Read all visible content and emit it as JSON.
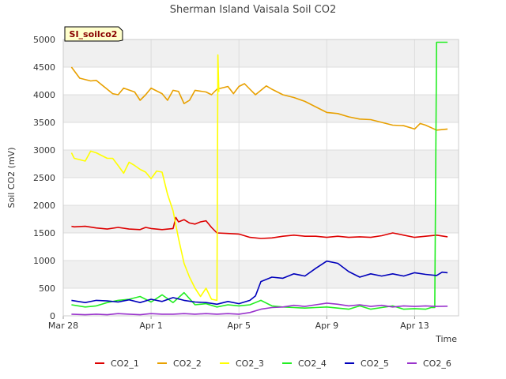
{
  "chart_data": {
    "type": "line",
    "title": "Sherman Island Vaisala Soil CO2",
    "xlabel": "Time",
    "ylabel": "Soil CO2 (mV)",
    "site_label": "SI_soilco2",
    "ylim": [
      0,
      5000
    ],
    "yticks": [
      0,
      500,
      1000,
      1500,
      2000,
      2500,
      3000,
      3500,
      4000,
      4500,
      5000
    ],
    "xlim": [
      "2023-03-28",
      "2023-04-15"
    ],
    "xticks": [
      {
        "date": "2023-03-28",
        "label": "Mar 28"
      },
      {
        "date": "2023-04-01",
        "label": "Apr 1"
      },
      {
        "date": "2023-04-05",
        "label": "Apr 5"
      },
      {
        "date": "2023-04-09",
        "label": "Apr 9"
      },
      {
        "date": "2023-04-13",
        "label": "Apr 13"
      }
    ],
    "legend_position": "bottom",
    "background_bands": true,
    "series": [
      {
        "name": "CO2_1",
        "color": "#dd0000",
        "points": [
          [
            "2023-03-28T09:00",
            1620
          ],
          [
            "2023-03-28T12:00",
            1610
          ],
          [
            "2023-03-29T00:00",
            1620
          ],
          [
            "2023-03-29T12:00",
            1590
          ],
          [
            "2023-03-30T00:00",
            1570
          ],
          [
            "2023-03-30T12:00",
            1600
          ],
          [
            "2023-03-31T00:00",
            1570
          ],
          [
            "2023-03-31T12:00",
            1560
          ],
          [
            "2023-03-31T18:00",
            1600
          ],
          [
            "2023-04-01T00:00",
            1580
          ],
          [
            "2023-04-01T12:00",
            1560
          ],
          [
            "2023-04-02T00:00",
            1580
          ],
          [
            "2023-04-02T03:00",
            1780
          ],
          [
            "2023-04-02T06:00",
            1700
          ],
          [
            "2023-04-02T12:00",
            1740
          ],
          [
            "2023-04-02T18:00",
            1680
          ],
          [
            "2023-04-03T00:00",
            1660
          ],
          [
            "2023-04-03T06:00",
            1700
          ],
          [
            "2023-04-03T12:00",
            1720
          ],
          [
            "2023-04-03T18:00",
            1600
          ],
          [
            "2023-04-04T00:00",
            1500
          ],
          [
            "2023-04-04T12:00",
            1490
          ],
          [
            "2023-04-05T00:00",
            1480
          ],
          [
            "2023-04-05T12:00",
            1420
          ],
          [
            "2023-04-06T00:00",
            1400
          ],
          [
            "2023-04-06T12:00",
            1410
          ],
          [
            "2023-04-07T00:00",
            1440
          ],
          [
            "2023-04-07T12:00",
            1460
          ],
          [
            "2023-04-08T00:00",
            1440
          ],
          [
            "2023-04-08T12:00",
            1440
          ],
          [
            "2023-04-09T00:00",
            1420
          ],
          [
            "2023-04-09T12:00",
            1440
          ],
          [
            "2023-04-10T00:00",
            1420
          ],
          [
            "2023-04-10T12:00",
            1430
          ],
          [
            "2023-04-11T00:00",
            1420
          ],
          [
            "2023-04-11T12:00",
            1450
          ],
          [
            "2023-04-12T00:00",
            1500
          ],
          [
            "2023-04-12T12:00",
            1460
          ],
          [
            "2023-04-13T00:00",
            1420
          ],
          [
            "2023-04-13T12:00",
            1440
          ],
          [
            "2023-04-14T00:00",
            1460
          ],
          [
            "2023-04-14T12:00",
            1430
          ]
        ]
      },
      {
        "name": "CO2_2",
        "color": "#e8a000",
        "points": [
          [
            "2023-03-28T09:00",
            4500
          ],
          [
            "2023-03-28T18:00",
            4300
          ],
          [
            "2023-03-29T06:00",
            4250
          ],
          [
            "2023-03-29T12:00",
            4260
          ],
          [
            "2023-03-30T00:00",
            4100
          ],
          [
            "2023-03-30T06:00",
            4020
          ],
          [
            "2023-03-30T12:00",
            4000
          ],
          [
            "2023-03-30T18:00",
            4120
          ],
          [
            "2023-03-31T06:00",
            4050
          ],
          [
            "2023-03-31T12:00",
            3900
          ],
          [
            "2023-03-31T18:00",
            4000
          ],
          [
            "2023-04-01T00:00",
            4120
          ],
          [
            "2023-04-01T12:00",
            4020
          ],
          [
            "2023-04-01T18:00",
            3900
          ],
          [
            "2023-04-02T00:00",
            4080
          ],
          [
            "2023-04-02T06:00",
            4060
          ],
          [
            "2023-04-02T12:00",
            3840
          ],
          [
            "2023-04-02T18:00",
            3900
          ],
          [
            "2023-04-03T00:00",
            4080
          ],
          [
            "2023-04-03T12:00",
            4050
          ],
          [
            "2023-04-03T18:00",
            4000
          ],
          [
            "2023-04-04T00:00",
            4100
          ],
          [
            "2023-04-04T12:00",
            4150
          ],
          [
            "2023-04-04T18:00",
            4020
          ],
          [
            "2023-04-05T00:00",
            4150
          ],
          [
            "2023-04-05T06:00",
            4200
          ],
          [
            "2023-04-05T12:00",
            4100
          ],
          [
            "2023-04-05T18:00",
            4000
          ],
          [
            "2023-04-06T00:00",
            4080
          ],
          [
            "2023-04-06T06:00",
            4160
          ],
          [
            "2023-04-06T12:00",
            4100
          ],
          [
            "2023-04-07T00:00",
            4000
          ],
          [
            "2023-04-07T12:00",
            3950
          ],
          [
            "2023-04-08T00:00",
            3880
          ],
          [
            "2023-04-08T12:00",
            3780
          ],
          [
            "2023-04-09T00:00",
            3680
          ],
          [
            "2023-04-09T12:00",
            3660
          ],
          [
            "2023-04-10T00:00",
            3600
          ],
          [
            "2023-04-10T12:00",
            3560
          ],
          [
            "2023-04-11T00:00",
            3550
          ],
          [
            "2023-04-11T12:00",
            3500
          ],
          [
            "2023-04-12T00:00",
            3450
          ],
          [
            "2023-04-12T12:00",
            3440
          ],
          [
            "2023-04-13T00:00",
            3380
          ],
          [
            "2023-04-13T06:00",
            3480
          ],
          [
            "2023-04-13T12:00",
            3450
          ],
          [
            "2023-04-14T00:00",
            3360
          ],
          [
            "2023-04-14T12:00",
            3380
          ]
        ]
      },
      {
        "name": "CO2_3",
        "color": "#ffff00",
        "points": [
          [
            "2023-03-28T09:00",
            2950
          ],
          [
            "2023-03-28T12:00",
            2850
          ],
          [
            "2023-03-29T00:00",
            2800
          ],
          [
            "2023-03-29T06:00",
            2980
          ],
          [
            "2023-03-29T12:00",
            2950
          ],
          [
            "2023-03-30T00:00",
            2850
          ],
          [
            "2023-03-30T06:00",
            2850
          ],
          [
            "2023-03-30T12:00",
            2720
          ],
          [
            "2023-03-30T18:00",
            2580
          ],
          [
            "2023-03-31T00:00",
            2780
          ],
          [
            "2023-03-31T06:00",
            2720
          ],
          [
            "2023-03-31T12:00",
            2650
          ],
          [
            "2023-03-31T18:00",
            2600
          ],
          [
            "2023-04-01T00:00",
            2480
          ],
          [
            "2023-04-01T06:00",
            2620
          ],
          [
            "2023-04-01T12:00",
            2600
          ],
          [
            "2023-04-01T18:00",
            2200
          ],
          [
            "2023-04-02T00:00",
            1900
          ],
          [
            "2023-04-02T06:00",
            1400
          ],
          [
            "2023-04-02T12:00",
            950
          ],
          [
            "2023-04-02T18:00",
            700
          ],
          [
            "2023-04-03T00:00",
            500
          ],
          [
            "2023-04-03T06:00",
            350
          ],
          [
            "2023-04-03T12:00",
            500
          ],
          [
            "2023-04-03T18:00",
            300
          ],
          [
            "2023-04-04T00:00",
            280
          ],
          [
            "2023-04-04T01:00",
            4720
          ],
          [
            "2023-04-04T02:00",
            4050
          ]
        ]
      },
      {
        "name": "CO2_4",
        "color": "#22ee22",
        "points": [
          [
            "2023-03-28T09:00",
            200
          ],
          [
            "2023-03-29T00:00",
            160
          ],
          [
            "2023-03-29T12:00",
            180
          ],
          [
            "2023-03-30T00:00",
            240
          ],
          [
            "2023-03-30T12:00",
            280
          ],
          [
            "2023-03-31T00:00",
            300
          ],
          [
            "2023-03-31T12:00",
            350
          ],
          [
            "2023-04-01T00:00",
            250
          ],
          [
            "2023-04-01T12:00",
            380
          ],
          [
            "2023-04-02T00:00",
            240
          ],
          [
            "2023-04-02T12:00",
            420
          ],
          [
            "2023-04-03T00:00",
            200
          ],
          [
            "2023-04-03T12:00",
            220
          ],
          [
            "2023-04-04T00:00",
            160
          ],
          [
            "2023-04-04T12:00",
            200
          ],
          [
            "2023-04-05T00:00",
            180
          ],
          [
            "2023-04-05T12:00",
            200
          ],
          [
            "2023-04-06T00:00",
            280
          ],
          [
            "2023-04-06T12:00",
            180
          ],
          [
            "2023-04-07T00:00",
            160
          ],
          [
            "2023-04-07T12:00",
            150
          ],
          [
            "2023-04-08T00:00",
            140
          ],
          [
            "2023-04-08T12:00",
            150
          ],
          [
            "2023-04-09T00:00",
            160
          ],
          [
            "2023-04-09T12:00",
            140
          ],
          [
            "2023-04-10T00:00",
            120
          ],
          [
            "2023-04-10T12:00",
            180
          ],
          [
            "2023-04-11T00:00",
            120
          ],
          [
            "2023-04-11T12:00",
            150
          ],
          [
            "2023-04-12T00:00",
            180
          ],
          [
            "2023-04-12T12:00",
            120
          ],
          [
            "2023-04-13T00:00",
            130
          ],
          [
            "2023-04-13T12:00",
            120
          ],
          [
            "2023-04-13T18:00",
            150
          ],
          [
            "2023-04-13T22:00",
            150
          ],
          [
            "2023-04-14T00:00",
            4950
          ],
          [
            "2023-04-14T12:00",
            4950
          ]
        ]
      },
      {
        "name": "CO2_5",
        "color": "#0000bb",
        "points": [
          [
            "2023-03-28T09:00",
            280
          ],
          [
            "2023-03-29T00:00",
            240
          ],
          [
            "2023-03-29T12:00",
            280
          ],
          [
            "2023-03-30T00:00",
            270
          ],
          [
            "2023-03-30T12:00",
            250
          ],
          [
            "2023-03-31T00:00",
            290
          ],
          [
            "2023-03-31T12:00",
            240
          ],
          [
            "2023-04-01T00:00",
            300
          ],
          [
            "2023-04-01T12:00",
            260
          ],
          [
            "2023-04-02T00:00",
            330
          ],
          [
            "2023-04-02T12:00",
            280
          ],
          [
            "2023-04-03T00:00",
            250
          ],
          [
            "2023-04-03T12:00",
            240
          ],
          [
            "2023-04-04T00:00",
            210
          ],
          [
            "2023-04-04T12:00",
            260
          ],
          [
            "2023-04-05T00:00",
            220
          ],
          [
            "2023-04-05T12:00",
            280
          ],
          [
            "2023-04-05T18:00",
            360
          ],
          [
            "2023-04-06T00:00",
            620
          ],
          [
            "2023-04-06T12:00",
            700
          ],
          [
            "2023-04-07T00:00",
            680
          ],
          [
            "2023-04-07T12:00",
            760
          ],
          [
            "2023-04-08T00:00",
            720
          ],
          [
            "2023-04-08T12:00",
            860
          ],
          [
            "2023-04-09T00:00",
            990
          ],
          [
            "2023-04-09T12:00",
            950
          ],
          [
            "2023-04-10T00:00",
            800
          ],
          [
            "2023-04-10T12:00",
            700
          ],
          [
            "2023-04-11T00:00",
            760
          ],
          [
            "2023-04-11T12:00",
            720
          ],
          [
            "2023-04-12T00:00",
            760
          ],
          [
            "2023-04-12T12:00",
            720
          ],
          [
            "2023-04-13T00:00",
            780
          ],
          [
            "2023-04-13T12:00",
            750
          ],
          [
            "2023-04-14T00:00",
            730
          ],
          [
            "2023-04-14T06:00",
            790
          ],
          [
            "2023-04-14T12:00",
            780
          ]
        ]
      },
      {
        "name": "CO2_6",
        "color": "#9933cc",
        "points": [
          [
            "2023-03-28T09:00",
            30
          ],
          [
            "2023-03-29T00:00",
            20
          ],
          [
            "2023-03-29T12:00",
            30
          ],
          [
            "2023-03-30T00:00",
            20
          ],
          [
            "2023-03-30T12:00",
            40
          ],
          [
            "2023-03-31T00:00",
            30
          ],
          [
            "2023-03-31T12:00",
            20
          ],
          [
            "2023-04-01T00:00",
            40
          ],
          [
            "2023-04-01T12:00",
            30
          ],
          [
            "2023-04-02T00:00",
            30
          ],
          [
            "2023-04-02T12:00",
            40
          ],
          [
            "2023-04-03T00:00",
            30
          ],
          [
            "2023-04-03T12:00",
            40
          ],
          [
            "2023-04-04T00:00",
            30
          ],
          [
            "2023-04-04T12:00",
            40
          ],
          [
            "2023-04-05T00:00",
            30
          ],
          [
            "2023-04-05T12:00",
            60
          ],
          [
            "2023-04-06T00:00",
            120
          ],
          [
            "2023-04-06T12:00",
            150
          ],
          [
            "2023-04-07T00:00",
            160
          ],
          [
            "2023-04-07T12:00",
            190
          ],
          [
            "2023-04-08T00:00",
            170
          ],
          [
            "2023-04-08T12:00",
            200
          ],
          [
            "2023-04-09T00:00",
            230
          ],
          [
            "2023-04-09T12:00",
            210
          ],
          [
            "2023-04-10T00:00",
            180
          ],
          [
            "2023-04-10T12:00",
            200
          ],
          [
            "2023-04-11T00:00",
            170
          ],
          [
            "2023-04-11T12:00",
            190
          ],
          [
            "2023-04-12T00:00",
            160
          ],
          [
            "2023-04-12T12:00",
            180
          ],
          [
            "2023-04-13T00:00",
            170
          ],
          [
            "2023-04-13T12:00",
            180
          ],
          [
            "2023-04-14T00:00",
            170
          ],
          [
            "2023-04-14T12:00",
            175
          ]
        ]
      }
    ]
  }
}
